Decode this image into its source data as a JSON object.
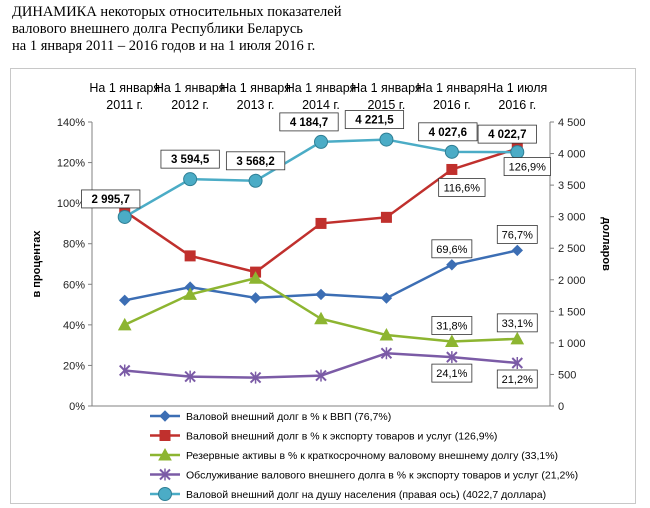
{
  "title": "ДИНАМИКА некоторых относительных показателей\nвалового внешнего долга Республики Беларусь\nна 1 января 2011 – 2016 годов и на 1 июля 2016 г.",
  "chart_data": {
    "type": "line",
    "categories": [
      [
        "На 1 января",
        "2011 г."
      ],
      [
        "На 1 января",
        "2012 г."
      ],
      [
        "На 1 января",
        "2013 г."
      ],
      [
        "На 1 января",
        "2014 г."
      ],
      [
        "На 1 января",
        "2015 г."
      ],
      [
        "На 1 января",
        "2016 г."
      ],
      [
        "На 1 июля",
        "2016 г."
      ]
    ],
    "ylabel": "в процентах",
    "y2label": "долларов",
    "ylim": [
      0,
      140
    ],
    "y2lim": [
      0,
      4500
    ],
    "yticks": [
      "0%",
      "20%",
      "40%",
      "60%",
      "80%",
      "100%",
      "120%",
      "140%"
    ],
    "y2ticks": [
      "0",
      "500",
      "1 000",
      "1 500",
      "2 000",
      "2 500",
      "3 000",
      "3 500",
      "4 000",
      "4 500"
    ],
    "grid": false,
    "legend_position": "bottom",
    "series": [
      {
        "name": "Валовой внешний долг в % к ВВП (76,7%)",
        "color": "#3c6eb4",
        "marker": "diamond",
        "axis": "left",
        "values": [
          52.1,
          58.6,
          53.3,
          55.0,
          53.2,
          69.6,
          76.7
        ],
        "labels": [
          "",
          "",
          "",
          "",
          "",
          "69,6%",
          "76,7%"
        ]
      },
      {
        "name": "Валовой внешний долг в % к экспорту товаров и услуг (126,9%)",
        "color": "#c0302d",
        "marker": "square",
        "axis": "left",
        "values": [
          96.0,
          74.0,
          66.0,
          90.0,
          93.0,
          116.6,
          126.9
        ],
        "labels": [
          "",
          "",
          "",
          "",
          "",
          "116,6%",
          "126,9%"
        ]
      },
      {
        "name": "Резервные активы в % к краткосрочному валовому внешнему долгу (33,1%)",
        "color": "#8db531",
        "marker": "triangle",
        "axis": "left",
        "values": [
          40.0,
          55.0,
          63.0,
          43.0,
          35.0,
          31.8,
          33.1
        ],
        "labels": [
          "",
          "",
          "",
          "",
          "",
          "31,8%",
          "33,1%"
        ]
      },
      {
        "name": "Обслуживание валового внешнего долга в % к экспорту товаров и услуг (21,2%)",
        "color": "#7b5ba6",
        "marker": "cross",
        "axis": "left",
        "values": [
          17.5,
          14.5,
          14.0,
          15.0,
          26.0,
          24.1,
          21.2
        ],
        "labels": [
          "",
          "",
          "",
          "",
          "",
          "24,1%",
          "21,2%"
        ]
      },
      {
        "name": "Валовой внешний долг на душу населения (правая ось) (4022,7 доллара)",
        "color": "#4bacc6",
        "marker": "circle",
        "axis": "right",
        "values": [
          2995.7,
          3594.5,
          3568.2,
          4184.7,
          4221.5,
          4027.6,
          4022.7
        ],
        "labels": [
          "2 995,7",
          "3 594,5",
          "3 568,2",
          "4 184,7",
          "4 221,5",
          "4 027,6",
          "4 022,7"
        ]
      }
    ]
  }
}
